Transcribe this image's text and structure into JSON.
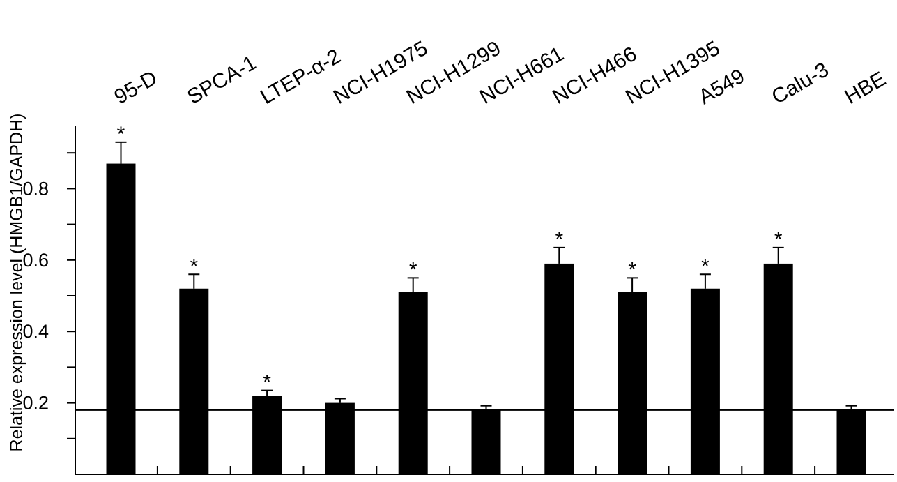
{
  "chart_data": {
    "type": "bar",
    "title": "",
    "xlabel": "",
    "ylabel": "Relative expression level (HMGB1/GAPDH)",
    "ylim": [
      0.0,
      0.95
    ],
    "yticks": [
      0.2,
      0.4,
      0.6,
      0.8
    ],
    "ytick_labels": [
      "0.2",
      "0.4",
      "0.6",
      "0.8"
    ],
    "categories": [
      "95-D",
      "SPCA-1",
      "LTEP-α-2",
      "NCI-H1975",
      "NCI-H1299",
      "NCI-H661",
      "NCI-H466",
      "NCI-H1395",
      "A549",
      "Calu-3",
      "HBE"
    ],
    "values": [
      0.87,
      0.52,
      0.22,
      0.2,
      0.51,
      0.18,
      0.59,
      0.51,
      0.52,
      0.59,
      0.18
    ],
    "errors": [
      0.06,
      0.04,
      0.015,
      0.012,
      0.04,
      0.012,
      0.045,
      0.04,
      0.04,
      0.045,
      0.012
    ],
    "significance": [
      true,
      true,
      true,
      false,
      true,
      false,
      true,
      true,
      true,
      true,
      false
    ],
    "significance_marker": "*",
    "reference_line": 0.18,
    "bar_color": "#000000",
    "grid": false,
    "legend": "none"
  }
}
